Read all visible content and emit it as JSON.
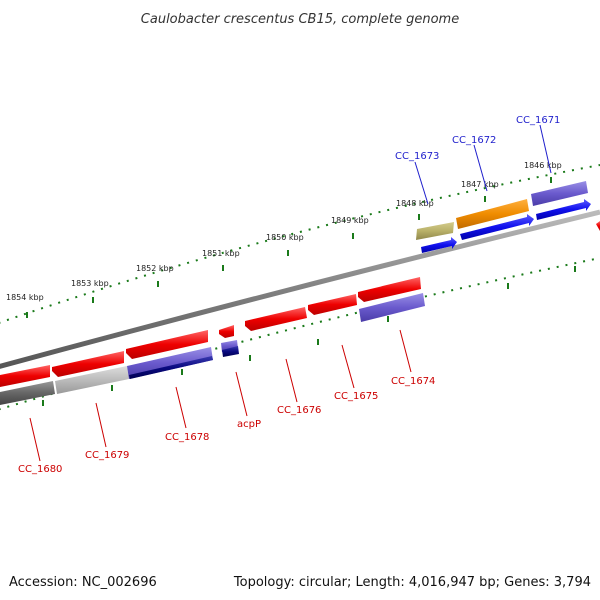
{
  "header": {
    "title": "Caulobacter crescentus CB15, complete genome"
  },
  "footer": {
    "accession": "Accession: NC_002696",
    "summary": "Topology: circular; Length: 4,016,947 bp; Genes: 3,794"
  },
  "ticks": {
    "labels": [
      "1854 kbp",
      "1853 kbp",
      "1852 kbp",
      "1851 kbp",
      "1850 kbp",
      "1849 kbp",
      "1848 kbp",
      "1847 kbp",
      "1846 kbp"
    ],
    "color": "#1a7a1a"
  },
  "genes": {
    "forward": [
      {
        "label": "CC_1673",
        "color": "#1f1fcc"
      },
      {
        "label": "CC_1672",
        "color": "#1f1fcc"
      },
      {
        "label": "CC_1671",
        "color": "#1f1fcc"
      }
    ],
    "reverse": [
      {
        "label": "CC_1680",
        "color": "#cc0000"
      },
      {
        "label": "CC_1679",
        "color": "#cc0000"
      },
      {
        "label": "CC_1678",
        "color": "#cc0000"
      },
      {
        "label": "acpP",
        "color": "#cc0000"
      },
      {
        "label": "CC_1676",
        "color": "#cc0000"
      },
      {
        "label": "CC_1675",
        "color": "#cc0000"
      },
      {
        "label": "CC_1674",
        "color": "#cc0000"
      }
    ]
  },
  "colors": {
    "backbone": "#808080",
    "cds_forward": "#1010ee",
    "cds_reverse": "#ee0000",
    "cog_purple": "#6a5acd",
    "cog_orange": "#f08c00",
    "cog_khaki": "#b8b068",
    "cog_gray": "#666666",
    "cog_navy": "#0a0a80"
  }
}
